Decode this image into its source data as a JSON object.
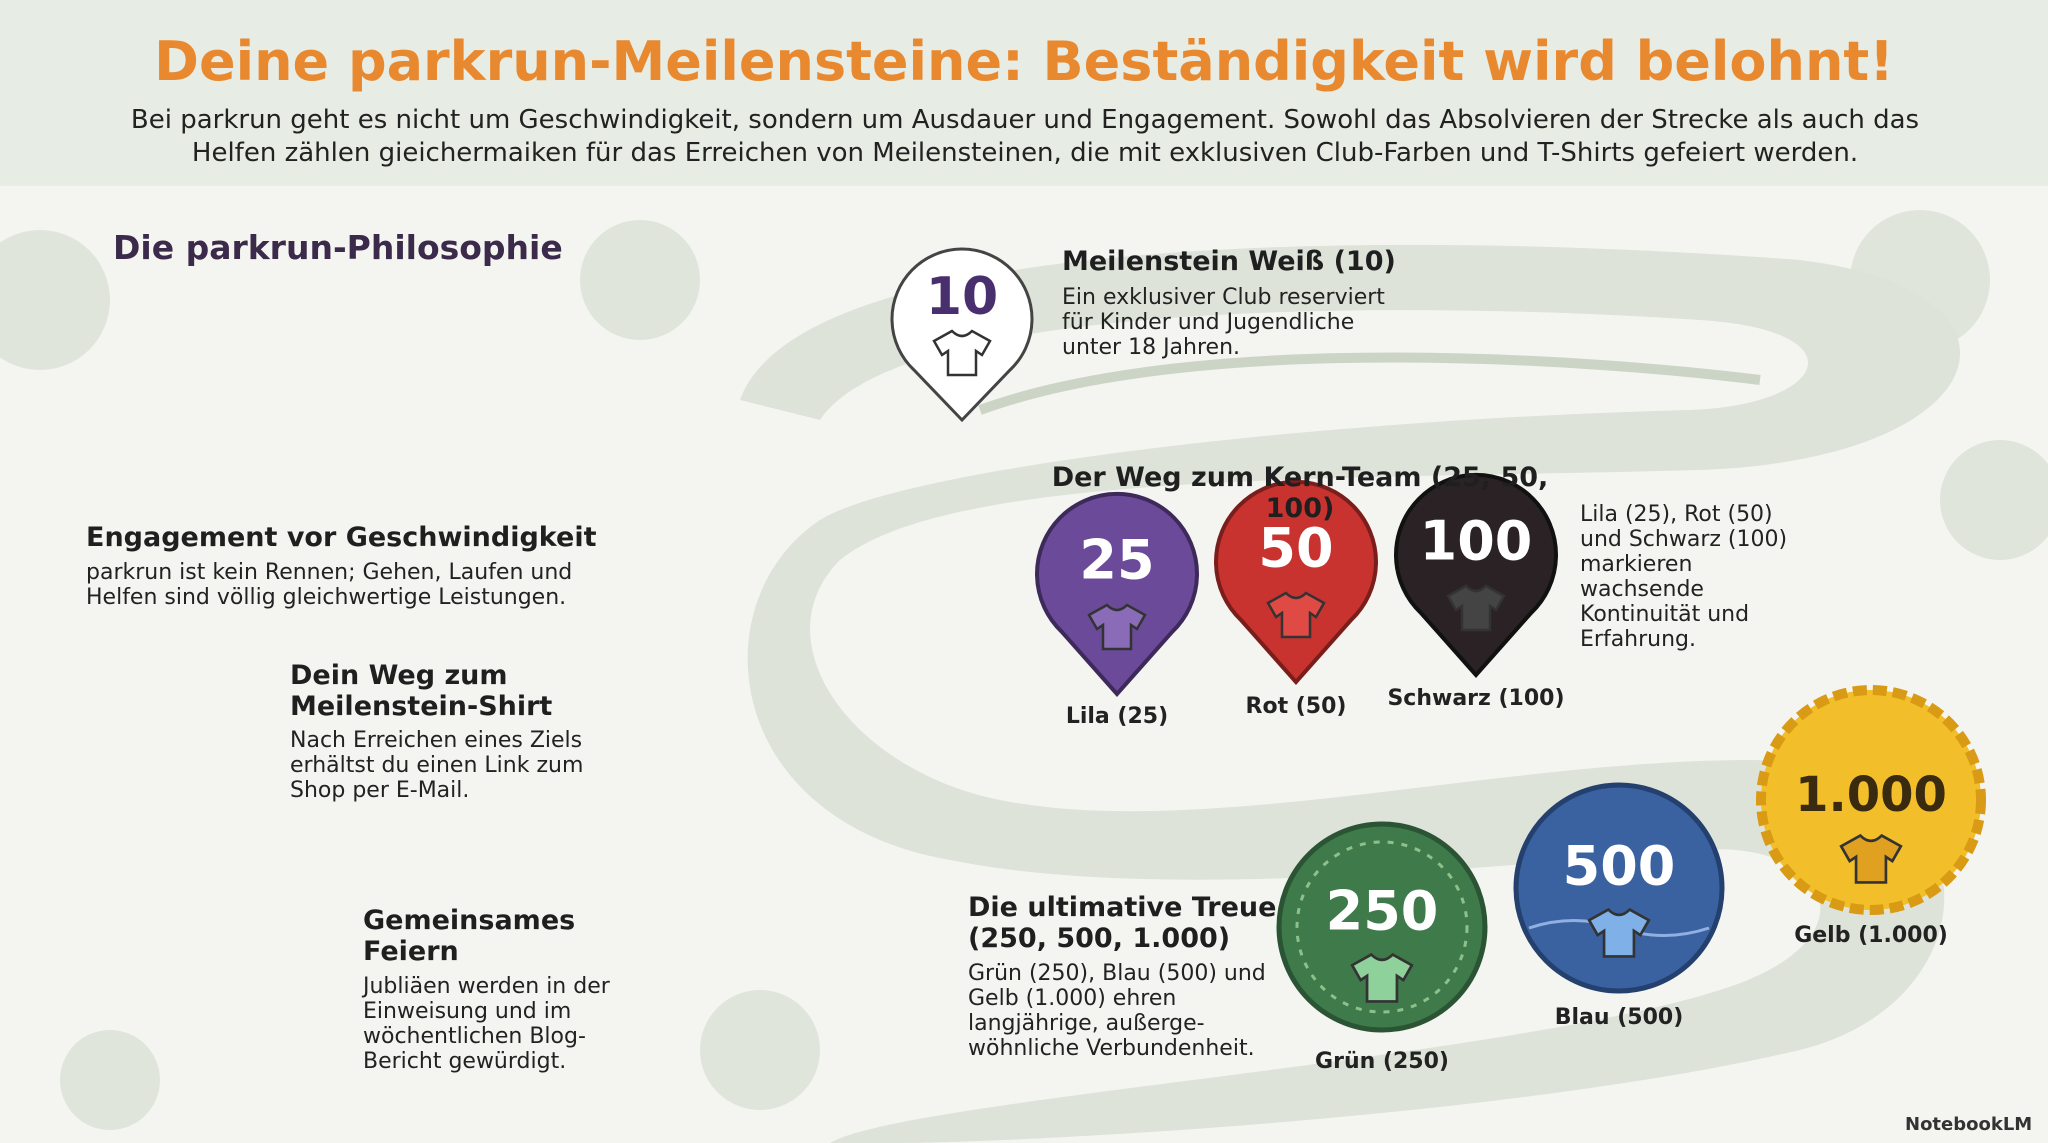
{
  "header": {
    "title": "Deine parkrun-Meilensteine: Beständigkeit wird belohnt!",
    "subtitle": "Bei parkrun geht es nicht um Geschwindigkeit, sondern um Ausdauer und Engagement. Sowohl das Absolvieren der Strecke als auch das Helfen zählen gieichermaiken für das Erreichen von Meilensteinen, die mit exklusiven Club-Farben und T-Shirts gefeiert werden."
  },
  "philosophy": {
    "heading": "Die parkrun-Philosophie",
    "sections": [
      {
        "title": "Engagement vor Geschwindigkeit",
        "text": "parkrun ist kein Rennen; Gehen, Laufen und Helfen sind völlig gleichwertige Leistungen."
      },
      {
        "title": "Dein Weg zum Meilenstein-Shirt",
        "text": "Nach Erreichen eines Ziels erhältst du einen Link zum Shop per E-Mail."
      },
      {
        "title": "Gemeinsames Feiern",
        "text": "Jubliäen werden in der Einweisung und im wöchentlichen Blog-Bericht gewürdigt."
      }
    ]
  },
  "milestones": {
    "white": {
      "badge": "10",
      "title": "Meilenstein Weiß (10)",
      "text": "Ein exklusiver Club reserviert für Kinder und Jugendliche unter 18 Jahren."
    },
    "core": {
      "title": "Der Weg zum Kern-Team (25, 50, 100)",
      "text": "Lila (25), Rot (50) und Schwarz (100) markieren wachsende Kontinuität und Erfahrung.",
      "badges": [
        {
          "number": "25",
          "label": "Lila (25)"
        },
        {
          "number": "50",
          "label": "Rot (50)"
        },
        {
          "number": "100",
          "label": "Schwarz (100)"
        }
      ]
    },
    "ultimate": {
      "title": "Die ultimative Treue (250, 500, 1.000)",
      "text": "Grün (250), Blau (500) und Gelb (1.000) ehren langjährige, außerge-wöhnliche Verbundenheit.",
      "badges": [
        {
          "number": "250",
          "label": "Grün (250)"
        },
        {
          "number": "500",
          "label": "Blau (500)"
        },
        {
          "number": "1.000",
          "label": "Gelb (1.000)"
        }
      ]
    }
  },
  "watermark": "NotebookLM"
}
